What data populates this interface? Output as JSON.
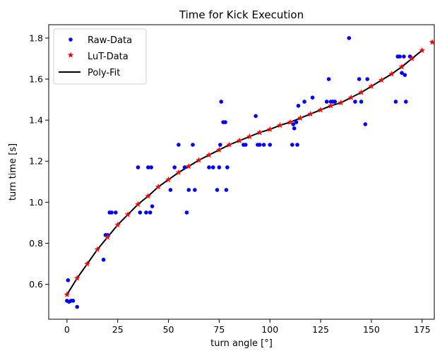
{
  "chart_data": {
    "type": "scatter",
    "title": "Time for Kick Execution",
    "xlabel": "turn angle [°]",
    "ylabel": "turn time [s]",
    "xlim": [
      -9,
      181
    ],
    "ylim": [
      0.43,
      1.865
    ],
    "xticks": [
      0,
      25,
      50,
      75,
      100,
      125,
      150,
      175
    ],
    "yticks": [
      0.6,
      0.8,
      1.0,
      1.2,
      1.4,
      1.6,
      1.8
    ],
    "ytick_labels": [
      "0.6",
      "0.8",
      "1.0",
      "1.2",
      "1.4",
      "1.6",
      "1.8"
    ],
    "grid": false,
    "legend_position": "top-left",
    "colors": {
      "raw": "#0000ff",
      "lut": "#ff0000",
      "fit": "#000000"
    },
    "series": [
      {
        "name": "Raw-Data",
        "kind": "scatter",
        "points": [
          [
            0,
            0.52
          ],
          [
            0.5,
            0.62
          ],
          [
            1,
            0.515
          ],
          [
            2,
            0.52
          ],
          [
            3,
            0.52
          ],
          [
            5,
            0.49
          ],
          [
            18,
            0.72
          ],
          [
            19,
            0.84
          ],
          [
            20,
            0.84
          ],
          [
            21,
            0.95
          ],
          [
            22,
            0.95
          ],
          [
            24,
            0.95
          ],
          [
            35,
            1.17
          ],
          [
            36,
            0.95
          ],
          [
            39,
            0.95
          ],
          [
            40,
            1.17
          ],
          [
            41,
            0.95
          ],
          [
            41.5,
            1.17
          ],
          [
            42,
            0.98
          ],
          [
            51,
            1.06
          ],
          [
            53,
            1.17
          ],
          [
            55,
            1.28
          ],
          [
            58,
            1.17
          ],
          [
            59,
            0.95
          ],
          [
            60,
            1.06
          ],
          [
            62,
            1.28
          ],
          [
            63,
            1.06
          ],
          [
            70,
            1.17
          ],
          [
            72,
            1.17
          ],
          [
            74,
            1.06
          ],
          [
            75,
            1.17
          ],
          [
            75.5,
            1.28
          ],
          [
            76,
            1.49
          ],
          [
            77,
            1.39
          ],
          [
            78,
            1.39
          ],
          [
            78.5,
            1.06
          ],
          [
            79,
            1.17
          ],
          [
            87,
            1.28
          ],
          [
            88,
            1.28
          ],
          [
            93,
            1.42
          ],
          [
            94,
            1.28
          ],
          [
            95,
            1.28
          ],
          [
            97,
            1.28
          ],
          [
            100,
            1.28
          ],
          [
            111,
            1.28
          ],
          [
            111.5,
            1.38
          ],
          [
            112,
            1.36
          ],
          [
            113,
            1.39
          ],
          [
            113.5,
            1.28
          ],
          [
            114,
            1.47
          ],
          [
            117,
            1.49
          ],
          [
            121,
            1.51
          ],
          [
            128,
            1.49
          ],
          [
            129,
            1.6
          ],
          [
            130,
            1.49
          ],
          [
            131,
            1.49
          ],
          [
            132,
            1.49
          ],
          [
            139,
            1.8
          ],
          [
            142,
            1.49
          ],
          [
            144,
            1.6
          ],
          [
            145,
            1.49
          ],
          [
            147,
            1.38
          ],
          [
            148,
            1.6
          ],
          [
            162,
            1.49
          ],
          [
            163,
            1.71
          ],
          [
            164,
            1.71
          ],
          [
            165,
            1.63
          ],
          [
            166,
            1.71
          ],
          [
            166.5,
            1.62
          ],
          [
            167,
            1.49
          ],
          [
            169,
            1.71
          ]
        ]
      },
      {
        "name": "LuT-Data",
        "kind": "scatter",
        "points": [
          [
            0,
            0.55
          ],
          [
            5,
            0.63
          ],
          [
            10,
            0.7
          ],
          [
            15,
            0.77
          ],
          [
            20,
            0.83
          ],
          [
            25,
            0.89
          ],
          [
            30,
            0.94
          ],
          [
            35,
            0.99
          ],
          [
            40,
            1.03
          ],
          [
            45,
            1.075
          ],
          [
            50,
            1.11
          ],
          [
            55,
            1.145
          ],
          [
            60,
            1.175
          ],
          [
            65,
            1.205
          ],
          [
            70,
            1.23
          ],
          [
            75,
            1.255
          ],
          [
            80,
            1.28
          ],
          [
            85,
            1.3
          ],
          [
            90,
            1.32
          ],
          [
            95,
            1.34
          ],
          [
            100,
            1.355
          ],
          [
            105,
            1.375
          ],
          [
            110,
            1.39
          ],
          [
            115,
            1.41
          ],
          [
            120,
            1.43
          ],
          [
            125,
            1.45
          ],
          [
            130,
            1.47
          ],
          [
            135,
            1.485
          ],
          [
            140,
            1.51
          ],
          [
            145,
            1.535
          ],
          [
            150,
            1.565
          ],
          [
            155,
            1.595
          ],
          [
            160,
            1.625
          ],
          [
            165,
            1.66
          ],
          [
            170,
            1.7
          ],
          [
            175,
            1.74
          ],
          [
            180,
            1.78
          ]
        ]
      },
      {
        "name": "Poly-Fit",
        "kind": "line",
        "points": [
          [
            0,
            0.55
          ],
          [
            5,
            0.63
          ],
          [
            10,
            0.7
          ],
          [
            15,
            0.77
          ],
          [
            20,
            0.83
          ],
          [
            25,
            0.89
          ],
          [
            30,
            0.94
          ],
          [
            35,
            0.99
          ],
          [
            40,
            1.03
          ],
          [
            45,
            1.075
          ],
          [
            50,
            1.11
          ],
          [
            55,
            1.145
          ],
          [
            60,
            1.175
          ],
          [
            65,
            1.205
          ],
          [
            70,
            1.23
          ],
          [
            75,
            1.255
          ],
          [
            80,
            1.28
          ],
          [
            85,
            1.3
          ],
          [
            90,
            1.32
          ],
          [
            95,
            1.34
          ],
          [
            100,
            1.355
          ],
          [
            105,
            1.375
          ],
          [
            110,
            1.39
          ],
          [
            115,
            1.41
          ],
          [
            120,
            1.43
          ],
          [
            125,
            1.45
          ],
          [
            130,
            1.47
          ],
          [
            135,
            1.485
          ],
          [
            140,
            1.51
          ],
          [
            145,
            1.535
          ],
          [
            150,
            1.565
          ],
          [
            155,
            1.595
          ],
          [
            160,
            1.625
          ],
          [
            165,
            1.66
          ],
          [
            170,
            1.7
          ],
          [
            175,
            1.74
          ]
        ]
      }
    ]
  }
}
